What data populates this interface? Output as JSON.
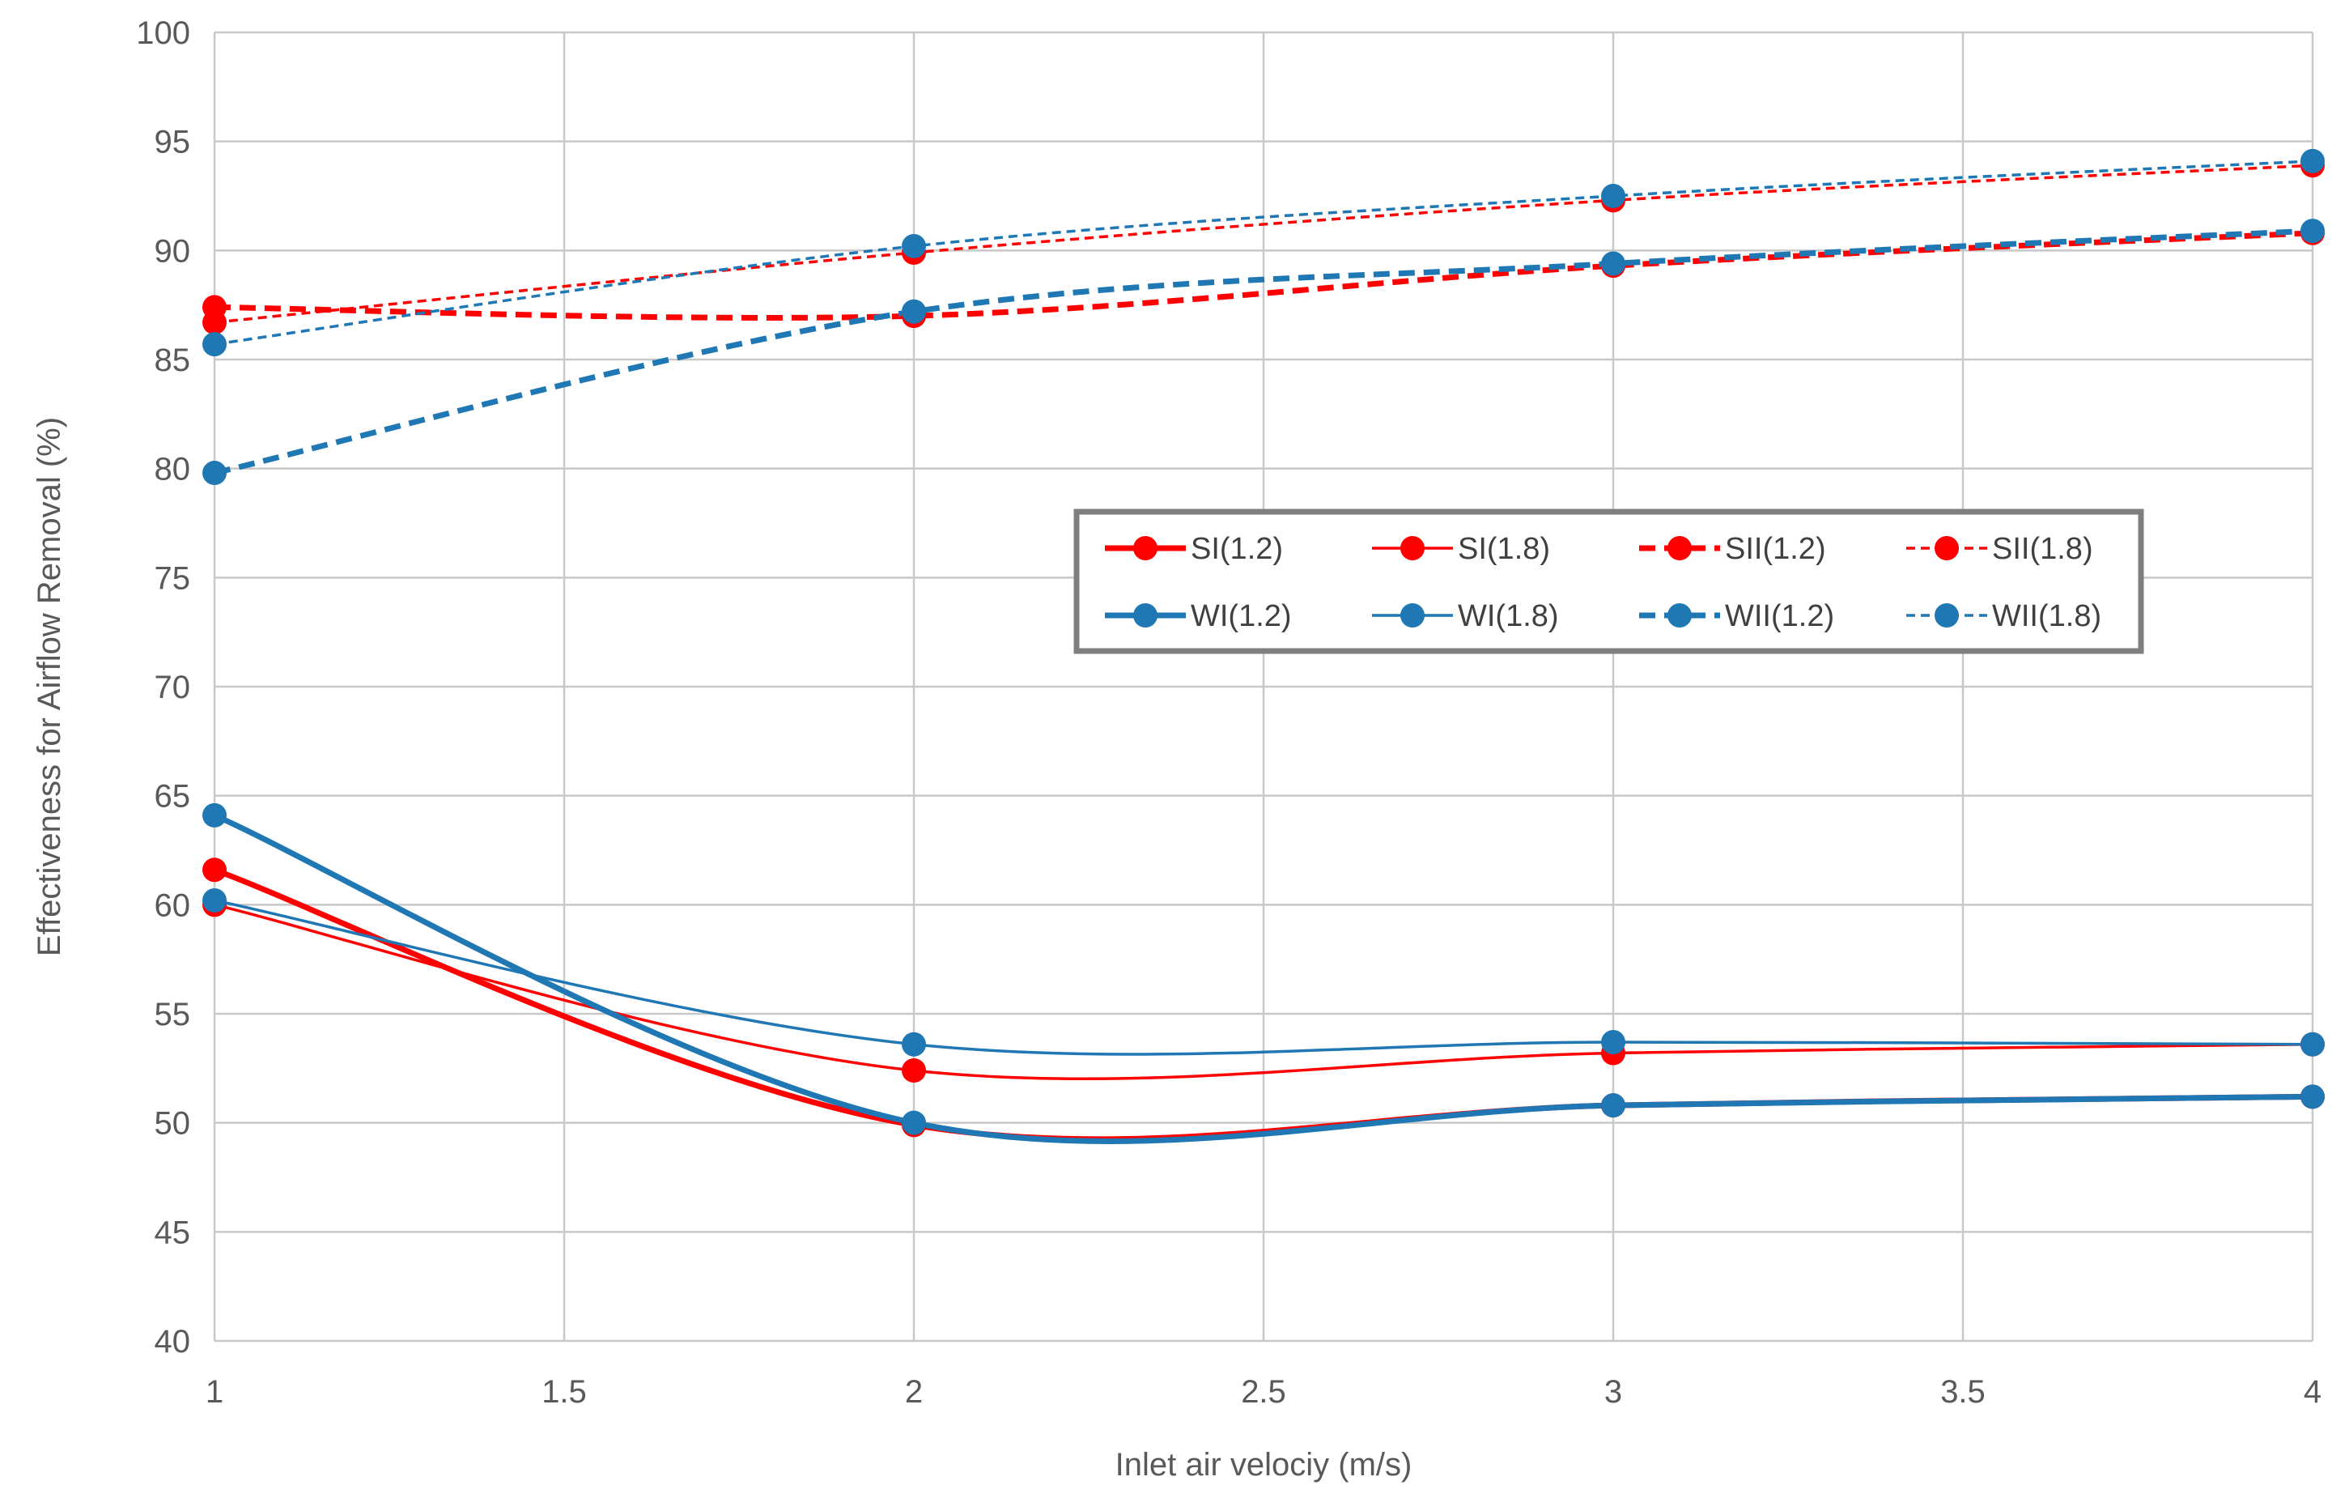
{
  "chart_data": {
    "type": "line",
    "title": "",
    "xlabel": "Inlet air velociy (m/s)",
    "ylabel": "Effectiveness for Airflow Removal (%)",
    "xlim": [
      1,
      4
    ],
    "ylim": [
      40,
      100
    ],
    "x_ticks": [
      1,
      1.5,
      2,
      2.5,
      3,
      3.5,
      4
    ],
    "x_tick_labels": [
      "1",
      "1.5",
      "2",
      "2.5",
      "3",
      "3.5",
      "4"
    ],
    "y_ticks": [
      40,
      45,
      50,
      55,
      60,
      65,
      70,
      75,
      80,
      85,
      90,
      95,
      100
    ],
    "y_tick_labels": [
      "40",
      "45",
      "50",
      "55",
      "60",
      "65",
      "70",
      "75",
      "80",
      "85",
      "90",
      "95",
      "100"
    ],
    "grid": true,
    "legend_position": "center-right",
    "x": [
      1,
      2,
      3,
      4
    ],
    "series": [
      {
        "name": "SI(1.2)",
        "values": [
          61.6,
          49.9,
          50.8,
          51.2
        ],
        "color": "#ff0000",
        "style": "solid",
        "weight": "thick"
      },
      {
        "name": "SI(1.8)",
        "values": [
          60.0,
          52.4,
          53.2,
          53.6
        ],
        "color": "#ff0000",
        "style": "solid",
        "weight": "thin"
      },
      {
        "name": "SII(1.2)",
        "values": [
          87.4,
          87.0,
          89.3,
          90.8
        ],
        "color": "#ff0000",
        "style": "dashed",
        "weight": "thick"
      },
      {
        "name": "SII(1.8)",
        "values": [
          86.7,
          89.9,
          92.3,
          93.9
        ],
        "color": "#ff0000",
        "style": "dashed",
        "weight": "thin"
      },
      {
        "name": "WI(1.2)",
        "values": [
          64.1,
          50.0,
          50.8,
          51.2
        ],
        "color": "#1f77b4",
        "style": "solid",
        "weight": "thick"
      },
      {
        "name": "WI(1.8)",
        "values": [
          60.2,
          53.6,
          53.7,
          53.6
        ],
        "color": "#1f77b4",
        "style": "solid",
        "weight": "thin"
      },
      {
        "name": "WII(1.2)",
        "values": [
          79.8,
          87.2,
          89.4,
          90.9
        ],
        "color": "#1f77b4",
        "style": "dashed",
        "weight": "thick"
      },
      {
        "name": "WII(1.8)",
        "values": [
          85.7,
          90.2,
          92.5,
          94.1
        ],
        "color": "#1f77b4",
        "style": "dashed",
        "weight": "thin"
      }
    ]
  }
}
